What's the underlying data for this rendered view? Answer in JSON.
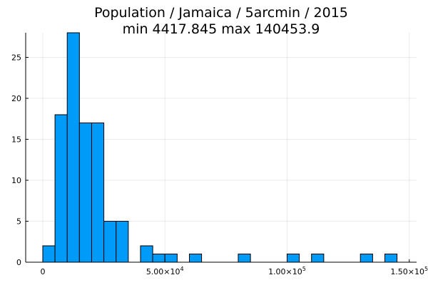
{
  "chart_data": {
    "type": "bar",
    "title": "Population / Jamaica / 5arcmin / 2015",
    "subtitle": "min 4417.845  max 140453.9",
    "xlabel": "",
    "ylabel": "",
    "bin_width": 5000,
    "bins": [
      {
        "x0": 0,
        "x1": 5000,
        "count": 2
      },
      {
        "x0": 5000,
        "x1": 10000,
        "count": 18
      },
      {
        "x0": 10000,
        "x1": 15000,
        "count": 28
      },
      {
        "x0": 15000,
        "x1": 20000,
        "count": 17
      },
      {
        "x0": 20000,
        "x1": 25000,
        "count": 17
      },
      {
        "x0": 25000,
        "x1": 30000,
        "count": 5
      },
      {
        "x0": 30000,
        "x1": 35000,
        "count": 5
      },
      {
        "x0": 40000,
        "x1": 45000,
        "count": 2
      },
      {
        "x0": 45000,
        "x1": 50000,
        "count": 1
      },
      {
        "x0": 50000,
        "x1": 55000,
        "count": 1
      },
      {
        "x0": 60000,
        "x1": 65000,
        "count": 1
      },
      {
        "x0": 80000,
        "x1": 85000,
        "count": 1
      },
      {
        "x0": 100000,
        "x1": 105000,
        "count": 1
      },
      {
        "x0": 110000,
        "x1": 115000,
        "count": 1
      },
      {
        "x0": 130000,
        "x1": 135000,
        "count": 1
      },
      {
        "x0": 140000,
        "x1": 145000,
        "count": 1
      }
    ],
    "xlim": [
      -7000,
      153000
    ],
    "ylim": [
      0,
      28
    ],
    "x_ticks": [
      {
        "value": 0,
        "mantissa": "0",
        "exponent": ""
      },
      {
        "value": 50000,
        "mantissa": "5.00×10",
        "exponent": "4"
      },
      {
        "value": 100000,
        "mantissa": "1.00×10",
        "exponent": "5"
      },
      {
        "value": 150000,
        "mantissa": "1.50×10",
        "exponent": "5"
      }
    ],
    "y_ticks": [
      0,
      5,
      10,
      15,
      20,
      25
    ],
    "grid": true,
    "legend": "none",
    "colors": {
      "bar_fill": "#009AF9",
      "bar_stroke": "#000000"
    }
  }
}
